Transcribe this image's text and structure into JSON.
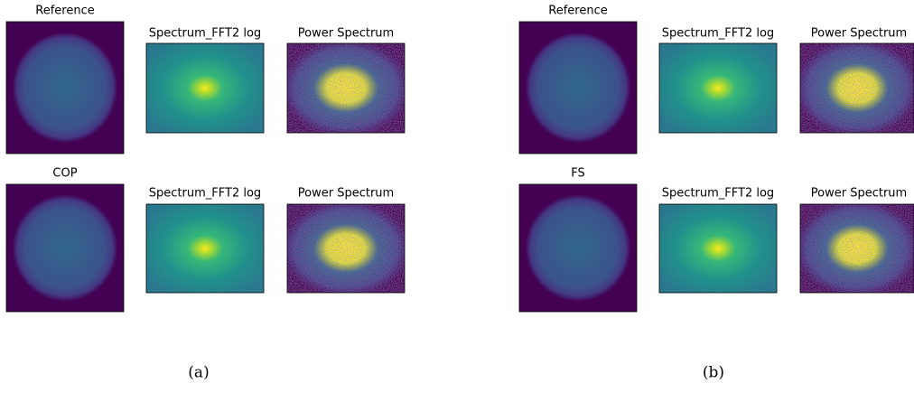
{
  "panels": [
    {
      "label": "(a)",
      "rows": [
        {
          "titles": [
            "Reference",
            "Spectrum_FFT2 log",
            "Power Spectrum"
          ]
        },
        {
          "titles": [
            "COP",
            "Spectrum_FFT2 log",
            "Power Spectrum"
          ]
        }
      ]
    },
    {
      "label": "(b)",
      "rows": [
        {
          "titles": [
            "Reference",
            "Spectrum_FFT2 log",
            "Power Spectrum"
          ]
        },
        {
          "titles": [
            "FS",
            "Spectrum_FFT2 log",
            "Power Spectrum"
          ]
        }
      ]
    }
  ]
}
